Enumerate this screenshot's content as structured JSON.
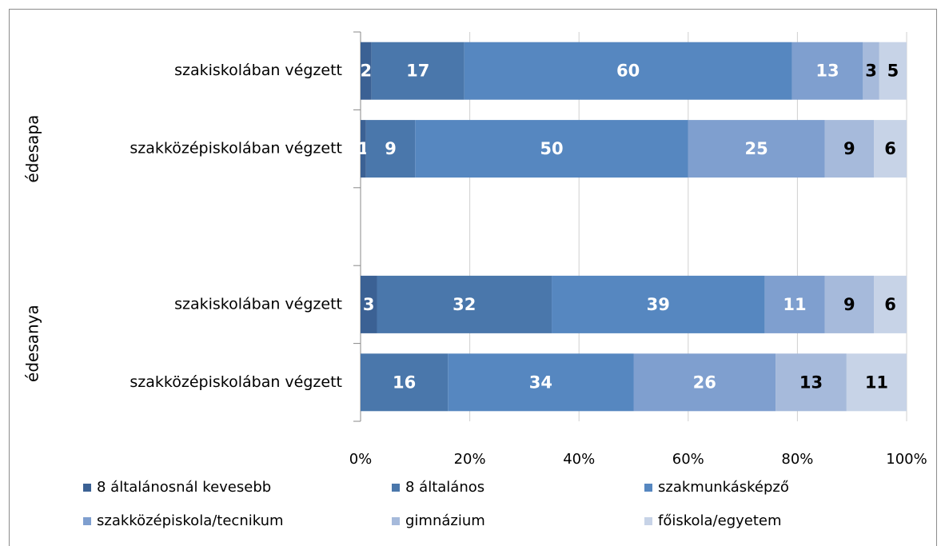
{
  "chart_data": {
    "type": "stacked-bar-horizontal",
    "group_labels": [
      "édesapa",
      "édesanya"
    ],
    "categories": [
      "szakiskolában végzett",
      "szakközépiskolában végzett",
      null,
      "szakiskolában végzett",
      "szakközépiskolában végzett"
    ],
    "series": [
      {
        "name": "8 általánosnál kevesebb",
        "color": "#3b6194",
        "label_color": "#ffffff",
        "values": [
          2,
          1,
          null,
          3,
          0
        ]
      },
      {
        "name": "8 általános",
        "color": "#4a77ab",
        "label_color": "#ffffff",
        "values": [
          17,
          9,
          null,
          32,
          16
        ]
      },
      {
        "name": "szakmunkásképző",
        "color": "#5687c0",
        "label_color": "#ffffff",
        "values": [
          60,
          50,
          null,
          39,
          34
        ]
      },
      {
        "name": "szakközépiskola/tecnikum",
        "color": "#7f9fcf",
        "label_color": "#ffffff",
        "values": [
          13,
          25,
          null,
          11,
          26
        ]
      },
      {
        "name": "gimnázium",
        "color": "#a6badb",
        "label_color": "#000000",
        "values": [
          3,
          9,
          null,
          9,
          13
        ]
      },
      {
        "name": "főiskola/egyetem",
        "color": "#c7d3e7",
        "label_color": "#000000",
        "values": [
          5,
          6,
          null,
          6,
          11
        ]
      }
    ],
    "xlim": [
      0,
      100
    ],
    "xticks": [
      {
        "value": 0,
        "label": "0%"
      },
      {
        "value": 20,
        "label": "20%"
      },
      {
        "value": 40,
        "label": "40%"
      },
      {
        "value": 60,
        "label": "60%"
      },
      {
        "value": 80,
        "label": "80%"
      },
      {
        "value": 100,
        "label": "100%"
      }
    ],
    "grid": true
  }
}
